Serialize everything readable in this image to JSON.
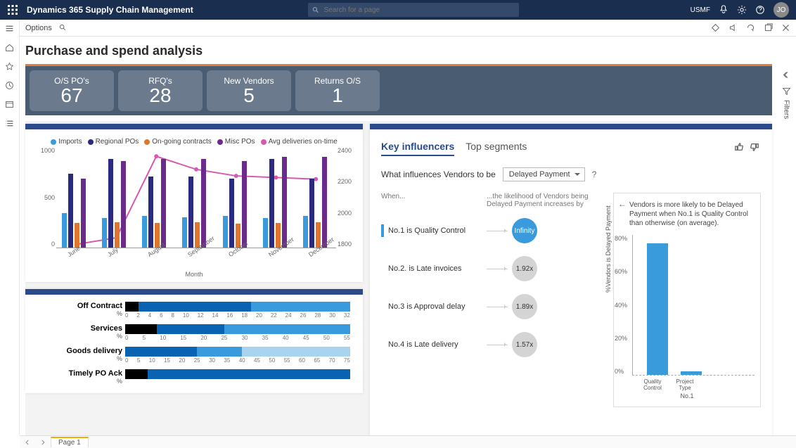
{
  "header": {
    "app_title": "Dynamics 365 Supply Chain Management",
    "search_placeholder": "Search for a page",
    "company": "USMF",
    "avatar_initials": "JO"
  },
  "toolbar": {
    "options": "Options"
  },
  "page_title": "Purchase and spend analysis",
  "kpi": [
    {
      "label": "O/S PO's",
      "value": "67"
    },
    {
      "label": "RFQ's",
      "value": "28"
    },
    {
      "label": "New Vendors",
      "value": "5"
    },
    {
      "label": "Returns O/S",
      "value": "1"
    }
  ],
  "combo_chart": {
    "legend": [
      {
        "label": "Imports",
        "color": "#3a9bdc"
      },
      {
        "label": "Regional POs",
        "color": "#2a2a80"
      },
      {
        "label": "On-going contracts",
        "color": "#e0762b"
      },
      {
        "label": "Misc POs",
        "color": "#6a2b8a"
      },
      {
        "label": "Avg deliveries on-time",
        "color": "#d858b0"
      }
    ],
    "y_left": {
      "ticks": [
        "1000",
        "500",
        "0"
      ],
      "max": 1000
    },
    "y_right": {
      "ticks": [
        "2400",
        "2200",
        "2000",
        "1800"
      ]
    },
    "months": [
      "June",
      "July",
      "August",
      "September",
      "October",
      "November",
      "December"
    ],
    "series": {
      "imports": [
        350,
        300,
        320,
        310,
        320,
        300,
        320
      ],
      "regional": [
        750,
        900,
        720,
        720,
        700,
        900,
        700
      ],
      "ongoing": [
        250,
        260,
        250,
        260,
        240,
        250,
        260
      ],
      "misc": [
        700,
        880,
        900,
        900,
        880,
        920,
        920
      ]
    },
    "line": [
      1820,
      1860,
      2360,
      2280,
      2240,
      2230,
      2220
    ],
    "line_range": {
      "min": 1800,
      "max": 2400
    },
    "bar_colors": {
      "imports": "#3a9bdc",
      "regional": "#2a2a80",
      "ongoing": "#e0762b",
      "misc": "#6a2b8a"
    },
    "line_color": "#d858b0",
    "x_title": "Month"
  },
  "hbar": {
    "rows": [
      {
        "label": "Off Contract",
        "segs": [
          {
            "c": "#000",
            "w": 6
          },
          {
            "c": "#0a62b3",
            "w": 50
          },
          {
            "c": "#3a9bdc",
            "w": 44
          }
        ],
        "ticks": [
          "0",
          "2",
          "4",
          "6",
          "8",
          "10",
          "12",
          "14",
          "16",
          "18",
          "20",
          "22",
          "24",
          "26",
          "28",
          "30",
          "32"
        ]
      },
      {
        "label": "Services",
        "segs": [
          {
            "c": "#000",
            "w": 14
          },
          {
            "c": "#0a62b3",
            "w": 30
          },
          {
            "c": "#3a9bdc",
            "w": 56
          }
        ],
        "ticks": [
          "0",
          "5",
          "10",
          "15",
          "20",
          "25",
          "30",
          "35",
          "40",
          "45",
          "50",
          "55"
        ]
      },
      {
        "label": "Goods delivery",
        "segs": [
          {
            "c": "#0a62b3",
            "w": 32
          },
          {
            "c": "#3a9bdc",
            "w": 20
          },
          {
            "c": "#a9d4f0",
            "w": 48
          }
        ],
        "ticks": [
          "0",
          "5",
          "10",
          "15",
          "20",
          "25",
          "30",
          "35",
          "40",
          "45",
          "50",
          "55",
          "60",
          "65",
          "70",
          "75"
        ]
      },
      {
        "label": "Timely PO Ack",
        "segs": [
          {
            "c": "#000",
            "w": 10
          },
          {
            "c": "#0a62b3",
            "w": 90
          }
        ],
        "ticks": []
      }
    ],
    "pct_symbol": "%"
  },
  "ki": {
    "tabs": [
      "Key influencers",
      "Top segments"
    ],
    "question_prefix": "What influences Vendors to be",
    "dropdown": "Delayed Payment",
    "when_header": "When...",
    "likelihood_header": "...the likelihood of Vendors being Delayed Payment increases by",
    "rows": [
      {
        "when": "No.1 is Quality Control",
        "bubble": "Infinity",
        "primary": true
      },
      {
        "when": "No.2. is Late invoices",
        "bubble": "1.92x"
      },
      {
        "when": "No.3 is Approval delay",
        "bubble": "1.89x"
      },
      {
        "when": "No.4 is Late delivery",
        "bubble": "1.57x"
      }
    ],
    "detail": {
      "text": "Vendors is more likely to be Delayed Payment when No.1 is Quality Control than otherwise (on average).",
      "y_ticks": [
        "80%",
        "60%",
        "40%",
        "20%",
        "0%"
      ],
      "y_label": "%Vendors is Delayed Payment",
      "bars": [
        {
          "label": "Quality Control",
          "value": 75,
          "color": "#3a9bdc"
        },
        {
          "label": "Project Type",
          "value": 2,
          "color": "#3a9bdc"
        }
      ],
      "x_title": "No.1",
      "y_max": 80
    }
  },
  "filters_label": "Filters",
  "page_tab": "Page 1"
}
